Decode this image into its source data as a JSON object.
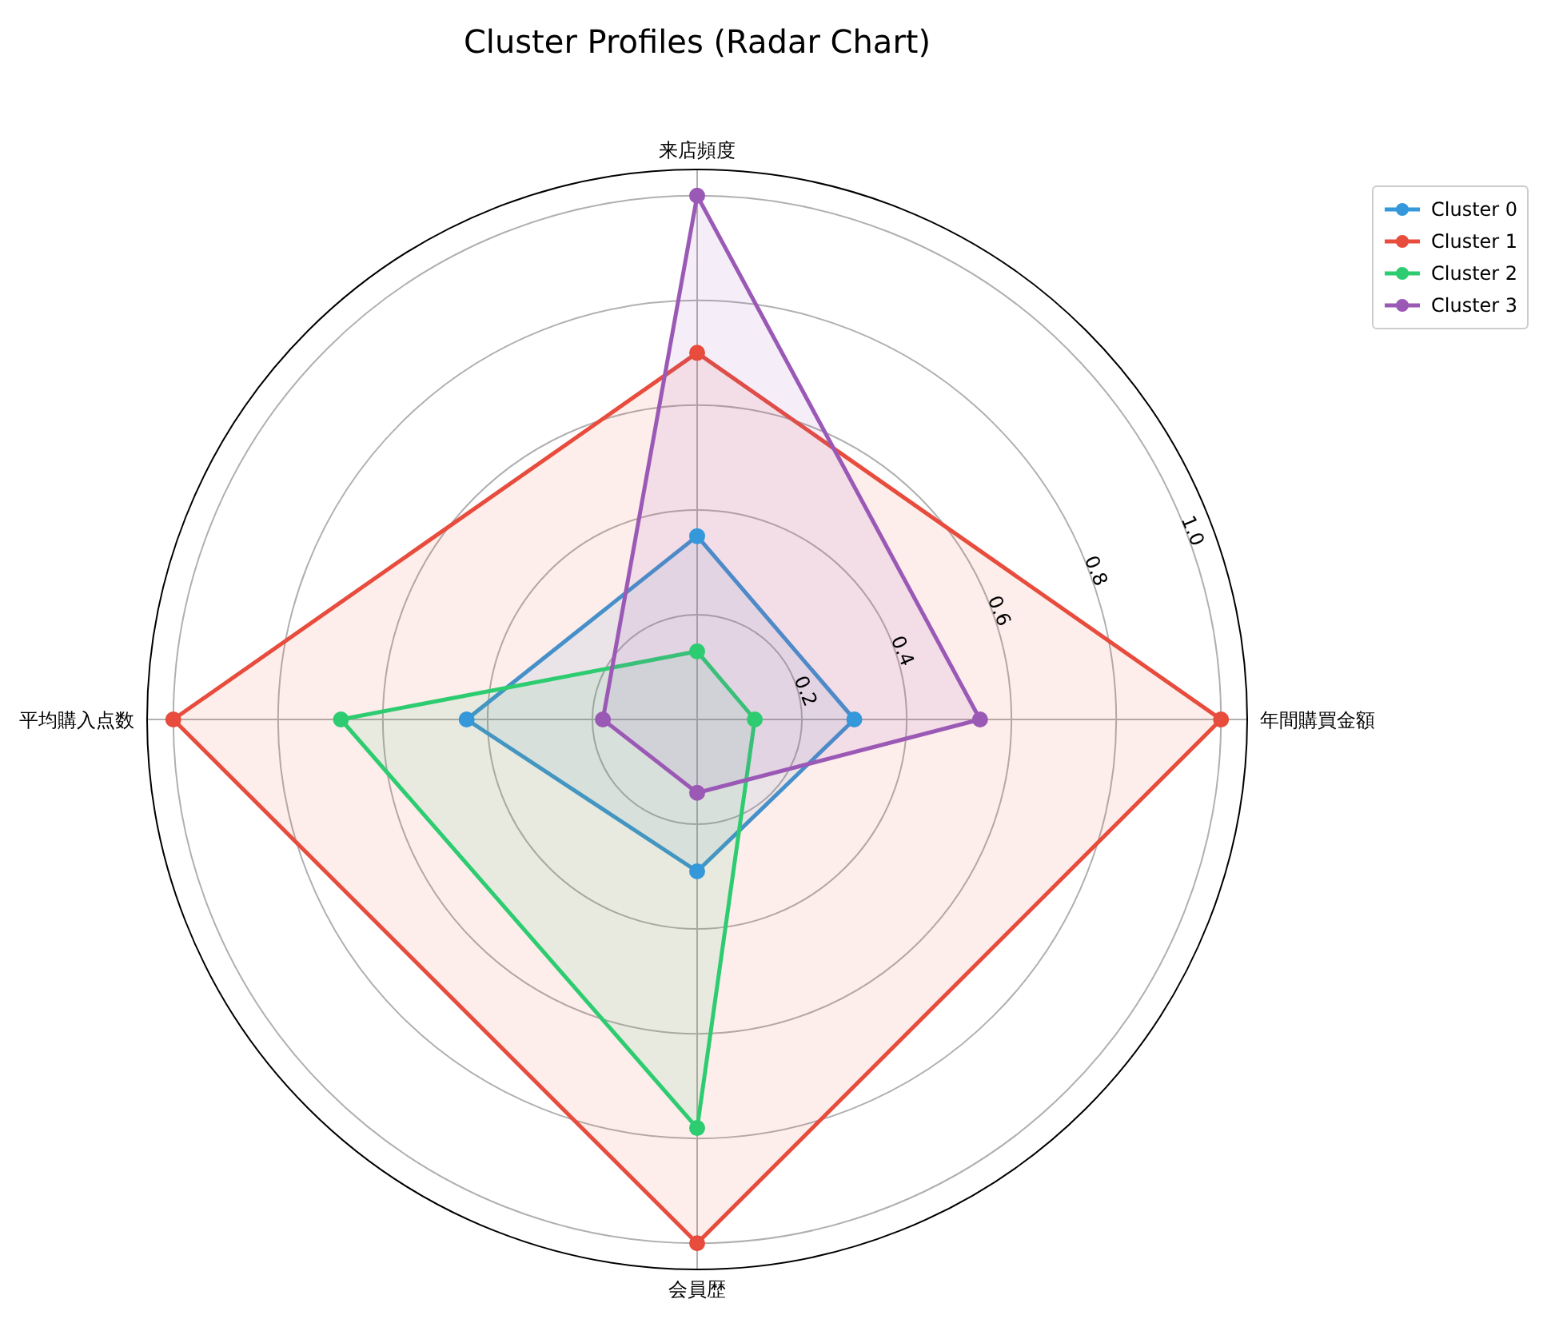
{
  "chart_data": {
    "type": "radar",
    "title": "Cluster Profiles (Radar Chart)",
    "categories": [
      "来店頻度",
      "年間購買金額",
      "会員歴",
      "平均購入点数"
    ],
    "series": [
      {
        "name": "Cluster 0",
        "color": "#3498db",
        "values": [
          0.35,
          0.3,
          0.29,
          0.44
        ]
      },
      {
        "name": "Cluster 1",
        "color": "#e74c3c",
        "values": [
          0.7,
          1.0,
          1.0,
          1.0
        ]
      },
      {
        "name": "Cluster 2",
        "color": "#2ecc71",
        "values": [
          0.13,
          0.11,
          0.78,
          0.68
        ]
      },
      {
        "name": "Cluster 3",
        "color": "#9b59b6",
        "values": [
          1.0,
          0.54,
          0.14,
          0.18
        ]
      }
    ],
    "ylim": [
      0,
      1.05
    ],
    "yticks": [
      0.2,
      0.4,
      0.6,
      0.8,
      {
        "value": 1.0,
        "label": "1.0"
      }
    ],
    "grid": true,
    "legend": "top right",
    "marker": "circle",
    "line_style": "solid"
  }
}
